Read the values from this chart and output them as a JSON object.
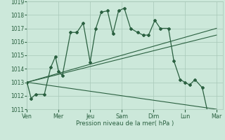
{
  "background_color": "#cce8da",
  "grid_color": "#a8c8b8",
  "line_color": "#2a6040",
  "xlabels": [
    "Ven",
    "Mer",
    "Jeu",
    "Sam",
    "Dim",
    "Lun",
    "Mar"
  ],
  "xlabel": "Pression niveau de la mer( hPa )",
  "ylim": [
    1011,
    1019
  ],
  "yticks": [
    1011,
    1012,
    1013,
    1014,
    1015,
    1016,
    1017,
    1018,
    1019
  ],
  "jagged_x": [
    0.0,
    0.13,
    0.27,
    0.55,
    0.75,
    0.9,
    1.0,
    1.12,
    1.38,
    1.58,
    1.78,
    2.0,
    2.18,
    2.35,
    2.55,
    2.72,
    2.9,
    3.08,
    3.28,
    3.5,
    3.68,
    3.85,
    4.05,
    4.22,
    4.48,
    4.65,
    4.85,
    5.0,
    5.15,
    5.32,
    5.55,
    5.72,
    5.9
  ],
  "jagged_y": [
    1013.0,
    1011.8,
    1012.1,
    1012.1,
    1014.1,
    1014.9,
    1013.8,
    1013.5,
    1016.7,
    1016.7,
    1017.4,
    1014.5,
    1017.0,
    1018.2,
    1018.3,
    1016.6,
    1018.3,
    1018.5,
    1017.0,
    1016.7,
    1016.5,
    1016.5,
    1017.6,
    1017.0,
    1017.0,
    1014.6,
    1013.2,
    1013.0,
    1012.8,
    1013.2,
    1012.6,
    1010.8,
    1010.8
  ],
  "trend_line_down": {
    "x": [
      0.0,
      6.0
    ],
    "y": [
      1013.0,
      1011.0
    ]
  },
  "trend_line_mid": {
    "x": [
      0.0,
      6.0
    ],
    "y": [
      1013.0,
      1016.5
    ]
  },
  "trend_line_up": {
    "x": [
      0.0,
      6.0
    ],
    "y": [
      1013.0,
      1017.0
    ]
  },
  "xmin": 0.0,
  "xmax": 6.2,
  "day_positions": [
    0.0,
    1.0,
    2.0,
    3.0,
    4.0,
    5.0,
    6.0
  ]
}
